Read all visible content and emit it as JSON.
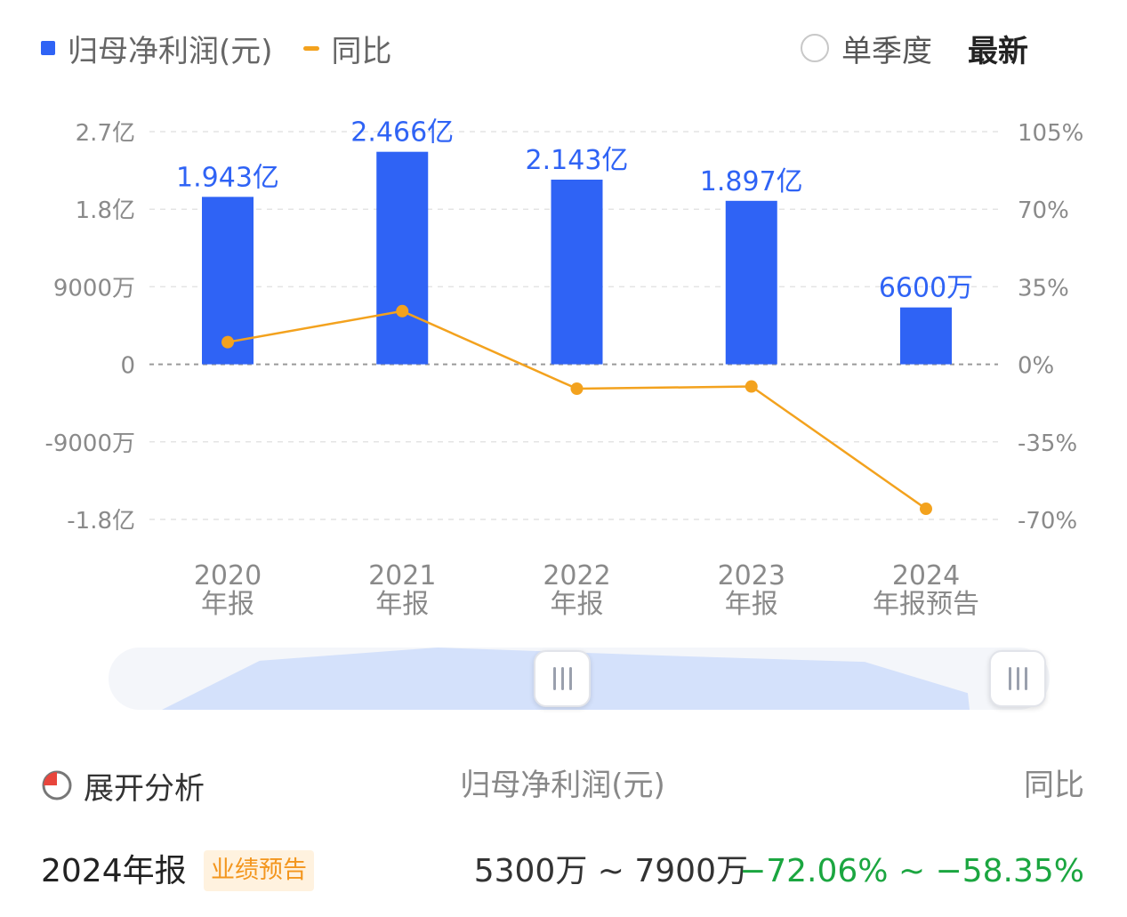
{
  "legend": {
    "bar_label": "归母净利润(元)",
    "line_label": "同比"
  },
  "toggle": {
    "quarter_label": "单季度",
    "latest_label": "最新"
  },
  "chart_data": {
    "type": "bar",
    "categories": [
      [
        "2020",
        "年报"
      ],
      [
        "2021",
        "年报"
      ],
      [
        "2022",
        "年报"
      ],
      [
        "2023",
        "年报"
      ],
      [
        "2024",
        "年报预告"
      ]
    ],
    "series": [
      {
        "name": "归母净利润(元)",
        "type": "bar",
        "values": [
          194300000,
          246600000,
          214300000,
          189700000,
          66000000
        ],
        "labels": [
          "1.943亿",
          "2.466亿",
          "2.143亿",
          "1.897亿",
          "6600万"
        ]
      },
      {
        "name": "同比",
        "type": "line",
        "axis": "right",
        "values": [
          10,
          24,
          -11,
          -10,
          -65.2
        ]
      }
    ],
    "y_left": {
      "ticks": [
        "2.7亿",
        "1.8亿",
        "9000万",
        "0",
        "-9000万",
        "-1.8亿"
      ],
      "tick_values": [
        270000000,
        180000000,
        90000000,
        0,
        -90000000,
        -180000000
      ],
      "range": [
        -180000000,
        270000000
      ]
    },
    "y_right": {
      "ticks": [
        "105%",
        "70%",
        "35%",
        "0%",
        "-35%",
        "-70%"
      ],
      "tick_values": [
        105,
        70,
        35,
        0,
        -35,
        -70
      ],
      "range": [
        -70,
        105
      ]
    },
    "grid": true,
    "colors": {
      "bar": "#2f63f5",
      "line": "#f3a21e",
      "label": "#2f63f5"
    }
  },
  "slider": {
    "overview": [
      1.943,
      2.466,
      2.143,
      1.897,
      0.66
    ]
  },
  "summary": {
    "expand_label": "展开分析",
    "col_metric": "归母净利润(元)",
    "col_yoy": "同比",
    "period": "2024年报",
    "badge": "业绩预告",
    "range": "5300万 ~ 7900万",
    "yoy_range": "−72.06% ~ −58.35%"
  }
}
